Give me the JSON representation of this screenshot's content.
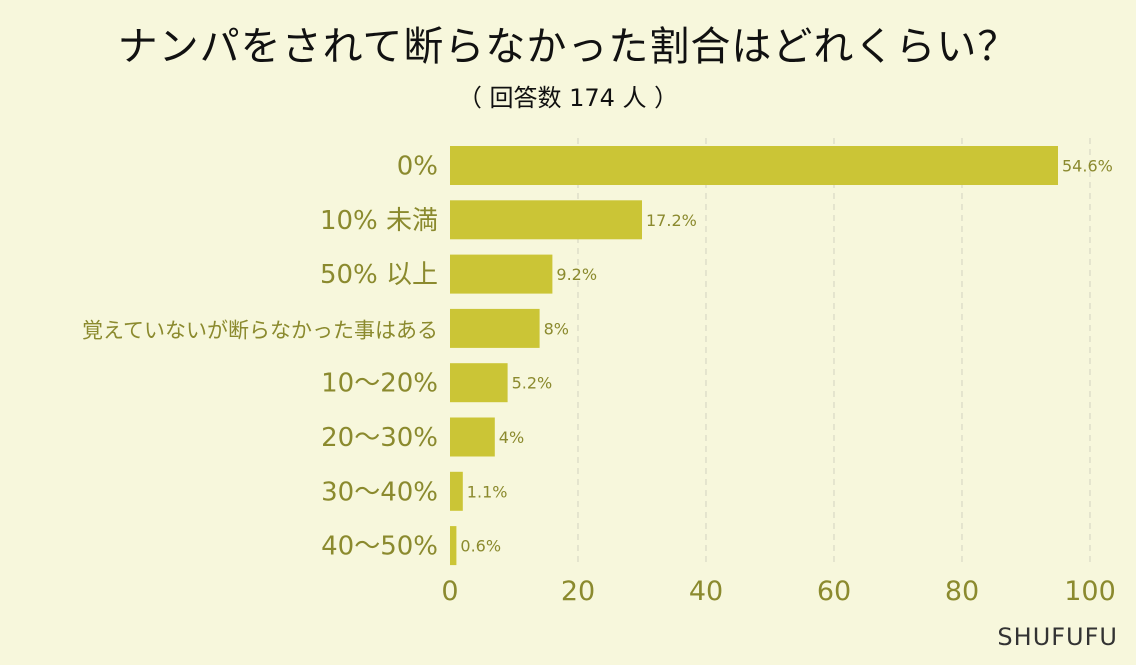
{
  "title": "ナンパをされて断らなかった割合はどれくらい？",
  "subtitle": "（ 回答数 174 人 ）",
  "brand": "SHUFUFU",
  "colors": {
    "background": "#f7f7dc",
    "bar": "#cbc536",
    "axis_text": "#8b8a2e",
    "value_text": "#8b8a2e",
    "grid": "#d9d9c4"
  },
  "chart_data": {
    "type": "bar",
    "orientation": "horizontal",
    "categories": [
      "0%",
      "10% 未満",
      "50% 以上",
      "覚えていないが断らなかった事はある",
      "10～20%",
      "20～30%",
      "30～40%",
      "40～50%"
    ],
    "values": [
      95,
      30,
      16,
      14,
      9,
      7,
      2,
      1
    ],
    "value_labels": [
      "54.6%",
      "17.2%",
      "9.2%",
      "8%",
      "5.2%",
      "4%",
      "1.1%",
      "0.6%"
    ],
    "xlim": [
      0,
      100
    ],
    "xticks": [
      "0",
      "20",
      "40",
      "60",
      "80",
      "100"
    ],
    "grid": "vertical dashed",
    "legend": "none"
  }
}
